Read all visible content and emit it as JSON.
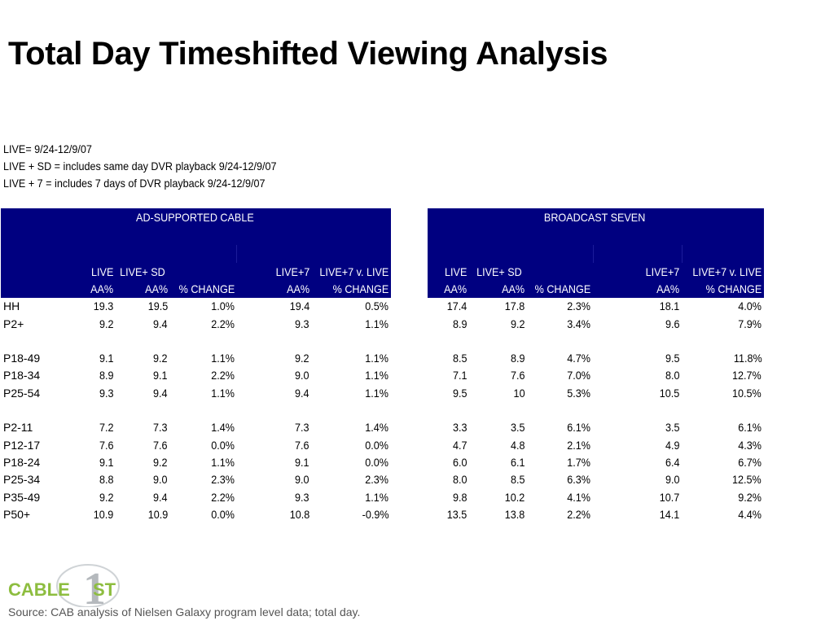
{
  "title": "Total Day Timeshifted Viewing Analysis",
  "notes": [
    "LIVE= 9/24-12/9/07",
    "LIVE + SD = includes same day DVR playback 9/24-12/9/07",
    "LIVE + 7 = includes 7 days of DVR playback 9/24-12/9/07"
  ],
  "groups": [
    "AD-SUPPORTED CABLE",
    "BROADCAST SEVEN"
  ],
  "headers_top": [
    "LIVE",
    "LIVE+ SD",
    "",
    "LIVE+7",
    "LIVE+7 v. LIVE"
  ],
  "headers_bottom": [
    "AA%",
    "AA%",
    "% CHANGE",
    "AA%",
    "% CHANGE"
  ],
  "rows": [
    {
      "label": "HH",
      "cable": [
        "19.3",
        "19.5",
        "1.0%",
        "19.4",
        "0.5%"
      ],
      "broadcast": [
        "17.4",
        "17.8",
        "2.3%",
        "18.1",
        "4.0%"
      ]
    },
    {
      "label": "P2+",
      "cable": [
        "9.2",
        "9.4",
        "2.2%",
        "9.3",
        "1.1%"
      ],
      "broadcast": [
        "8.9",
        "9.2",
        "3.4%",
        "9.6",
        "7.9%"
      ]
    },
    {
      "blank": true
    },
    {
      "label": "P18-49",
      "cable": [
        "9.1",
        "9.2",
        "1.1%",
        "9.2",
        "1.1%"
      ],
      "broadcast": [
        "8.5",
        "8.9",
        "4.7%",
        "9.5",
        "11.8%"
      ]
    },
    {
      "label": "P18-34",
      "cable": [
        "8.9",
        "9.1",
        "2.2%",
        "9.0",
        "1.1%"
      ],
      "broadcast": [
        "7.1",
        "7.6",
        "7.0%",
        "8.0",
        "12.7%"
      ]
    },
    {
      "label": "P25-54",
      "cable": [
        "9.3",
        "9.4",
        "1.1%",
        "9.4",
        "1.1%"
      ],
      "broadcast": [
        "9.5",
        "10",
        "5.3%",
        "10.5",
        "10.5%"
      ]
    },
    {
      "blank": true
    },
    {
      "label": "P2-11",
      "cable": [
        "7.2",
        "7.3",
        "1.4%",
        "7.3",
        "1.4%"
      ],
      "broadcast": [
        "3.3",
        "3.5",
        "6.1%",
        "3.5",
        "6.1%"
      ]
    },
    {
      "label": "P12-17",
      "cable": [
        "7.6",
        "7.6",
        "0.0%",
        "7.6",
        "0.0%"
      ],
      "broadcast": [
        "4.7",
        "4.8",
        "2.1%",
        "4.9",
        "4.3%"
      ]
    },
    {
      "label": "P18-24",
      "cable": [
        "9.1",
        "9.2",
        "1.1%",
        "9.1",
        "0.0%"
      ],
      "broadcast": [
        "6.0",
        "6.1",
        "1.7%",
        "6.4",
        "6.7%"
      ]
    },
    {
      "label": "P25-34",
      "cable": [
        "8.8",
        "9.0",
        "2.3%",
        "9.0",
        "2.3%"
      ],
      "broadcast": [
        "8.0",
        "8.5",
        "6.3%",
        "9.0",
        "12.5%"
      ]
    },
    {
      "label": "P35-49",
      "cable": [
        "9.2",
        "9.4",
        "2.2%",
        "9.3",
        "1.1%"
      ],
      "broadcast": [
        "9.8",
        "10.2",
        "4.1%",
        "10.7",
        "9.2%"
      ]
    },
    {
      "label": "P50+",
      "cable": [
        "10.9",
        "10.9",
        "0.0%",
        "10.8",
        "-0.9%"
      ],
      "broadcast": [
        "13.5",
        "13.8",
        "2.2%",
        "14.1",
        "4.4%"
      ]
    }
  ],
  "logo": {
    "text": "CABLE",
    "number": "1",
    "suffix": "ST",
    "color_green": "#8dbd3f",
    "color_gray": "#b5b9bd"
  },
  "source": "Source:  CAB analysis of Nielsen Galaxy program level data; total day.",
  "colors": {
    "header_bg": "#000080",
    "header_text": "#ffffff"
  }
}
